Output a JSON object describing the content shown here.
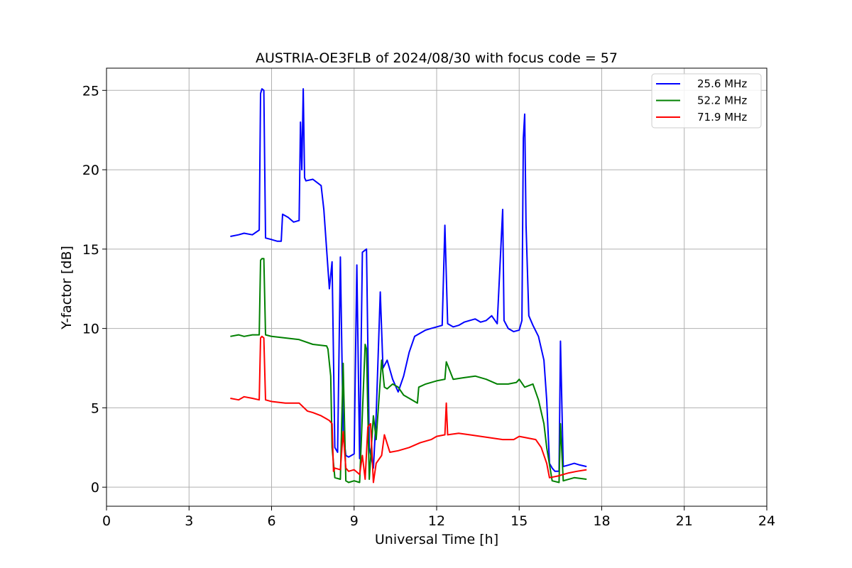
{
  "chart_data": {
    "type": "line",
    "title": "AUSTRIA-OE3FLB of 2024/08/30 with focus code = 57",
    "xlabel": "Universal Time [h]",
    "ylabel": "Y-factor [dB]",
    "xlim": [
      0,
      24
    ],
    "ylim": [
      -1.2,
      26.4
    ],
    "xticks": [
      0,
      3,
      6,
      9,
      12,
      15,
      18,
      21,
      24
    ],
    "yticks": [
      0,
      5,
      10,
      15,
      20,
      25
    ],
    "xtick_labels": [
      "0",
      "3",
      "6",
      "9",
      "12",
      "15",
      "18",
      "21",
      "24"
    ],
    "ytick_labels": [
      "0",
      "5",
      "10",
      "15",
      "20",
      "25"
    ],
    "grid": true,
    "legend_position": "top-right",
    "series": [
      {
        "name": "25.6 MHz",
        "color": "#0000ff",
        "x": [
          4.5,
          4.8,
          5.0,
          5.3,
          5.55,
          5.6,
          5.65,
          5.72,
          5.78,
          6.0,
          6.2,
          6.35,
          6.4,
          6.6,
          6.8,
          7.0,
          7.05,
          7.1,
          7.15,
          7.2,
          7.25,
          7.5,
          7.8,
          7.9,
          8.0,
          8.1,
          8.2,
          8.3,
          8.4,
          8.5,
          8.6,
          8.7,
          8.8,
          9.0,
          9.1,
          9.2,
          9.3,
          9.45,
          9.55,
          9.7,
          9.8,
          9.95,
          10.05,
          10.2,
          10.4,
          10.6,
          10.8,
          11.0,
          11.2,
          11.4,
          11.6,
          11.8,
          12.0,
          12.2,
          12.3,
          12.4,
          12.6,
          12.8,
          13.0,
          13.2,
          13.4,
          13.6,
          13.8,
          14.0,
          14.2,
          14.4,
          14.45,
          14.6,
          14.8,
          15.0,
          15.1,
          15.15,
          15.2,
          15.25,
          15.35,
          15.5,
          15.7,
          15.9,
          16.0,
          16.1,
          16.2,
          16.3,
          16.45,
          16.5,
          16.6,
          16.8,
          17.0,
          17.2,
          17.45
        ],
        "values": [
          15.8,
          15.9,
          16.0,
          15.9,
          16.2,
          24.8,
          25.1,
          25.0,
          15.7,
          15.6,
          15.5,
          15.5,
          17.2,
          17.0,
          16.7,
          16.8,
          23.0,
          20.0,
          25.1,
          19.5,
          19.3,
          19.4,
          19.0,
          17.5,
          15.0,
          12.5,
          14.2,
          2.5,
          2.2,
          14.5,
          3.5,
          2.0,
          1.9,
          2.1,
          14.0,
          1.8,
          14.8,
          15.0,
          2.5,
          1.2,
          4.5,
          12.3,
          7.5,
          8.0,
          6.8,
          6.0,
          7.0,
          8.5,
          9.5,
          9.7,
          9.9,
          10.0,
          10.1,
          10.2,
          16.5,
          10.3,
          10.1,
          10.2,
          10.4,
          10.5,
          10.6,
          10.4,
          10.5,
          10.8,
          10.3,
          17.5,
          10.5,
          10.0,
          9.8,
          9.9,
          10.5,
          22.0,
          23.5,
          16.5,
          10.8,
          10.2,
          9.5,
          8.0,
          5.5,
          1.5,
          1.2,
          1.0,
          1.0,
          9.2,
          1.3,
          1.4,
          1.5,
          1.4,
          1.3
        ]
      },
      {
        "name": "52.2 MHz",
        "color": "#008000",
        "x": [
          4.5,
          4.8,
          5.0,
          5.3,
          5.55,
          5.6,
          5.65,
          5.72,
          5.78,
          6.0,
          6.5,
          7.0,
          7.5,
          8.0,
          8.05,
          8.15,
          8.2,
          8.3,
          8.5,
          8.6,
          8.7,
          8.8,
          9.0,
          9.2,
          9.4,
          9.45,
          9.55,
          9.7,
          9.8,
          10.0,
          10.1,
          10.2,
          10.4,
          10.6,
          10.8,
          11.0,
          11.3,
          11.35,
          11.6,
          12.0,
          12.3,
          12.35,
          12.6,
          13.0,
          13.4,
          13.8,
          14.2,
          14.6,
          14.9,
          15.0,
          15.2,
          15.5,
          15.7,
          15.9,
          16.0,
          16.2,
          16.45,
          16.5,
          16.6,
          17.0,
          17.45
        ],
        "values": [
          9.5,
          9.6,
          9.5,
          9.6,
          9.6,
          14.3,
          14.4,
          14.4,
          9.6,
          9.5,
          9.4,
          9.3,
          9.0,
          8.9,
          8.7,
          7.0,
          2.5,
          0.6,
          0.5,
          7.8,
          0.4,
          0.3,
          0.4,
          0.3,
          9.0,
          8.7,
          0.5,
          4.5,
          3.0,
          8.0,
          6.3,
          6.2,
          6.5,
          6.3,
          5.8,
          5.6,
          5.3,
          6.3,
          6.5,
          6.7,
          6.8,
          7.9,
          6.8,
          6.9,
          7.0,
          6.8,
          6.5,
          6.5,
          6.6,
          6.8,
          6.3,
          6.5,
          5.5,
          4.0,
          2.5,
          0.4,
          0.3,
          4.0,
          0.4,
          0.6,
          0.5
        ]
      },
      {
        "name": "71.9 MHz",
        "color": "#ff0000",
        "x": [
          4.5,
          4.8,
          5.0,
          5.3,
          5.55,
          5.6,
          5.65,
          5.72,
          5.78,
          6.0,
          6.5,
          7.0,
          7.3,
          7.5,
          7.8,
          8.0,
          8.1,
          8.2,
          8.25,
          8.3,
          8.5,
          8.6,
          8.7,
          8.8,
          9.0,
          9.2,
          9.3,
          9.4,
          9.5,
          9.6,
          9.7,
          9.8,
          10.0,
          10.1,
          10.3,
          10.6,
          11.0,
          11.4,
          11.8,
          12.0,
          12.3,
          12.35,
          12.4,
          12.8,
          13.2,
          13.6,
          14.0,
          14.4,
          14.8,
          15.0,
          15.3,
          15.6,
          15.8,
          16.0,
          16.1,
          16.4,
          16.8,
          17.1,
          17.45
        ],
        "values": [
          5.6,
          5.5,
          5.7,
          5.6,
          5.5,
          9.4,
          9.5,
          9.4,
          5.5,
          5.4,
          5.3,
          5.3,
          4.8,
          4.7,
          4.5,
          4.3,
          4.2,
          4.0,
          1.0,
          1.2,
          1.1,
          3.5,
          1.2,
          1.0,
          1.1,
          0.8,
          2.0,
          0.5,
          3.8,
          4.0,
          0.3,
          1.5,
          2.0,
          3.3,
          2.2,
          2.3,
          2.5,
          2.8,
          3.0,
          3.2,
          3.3,
          5.3,
          3.3,
          3.4,
          3.3,
          3.2,
          3.1,
          3.0,
          3.0,
          3.2,
          3.1,
          3.0,
          2.5,
          1.5,
          0.6,
          0.7,
          0.9,
          1.0,
          1.1
        ]
      }
    ]
  }
}
